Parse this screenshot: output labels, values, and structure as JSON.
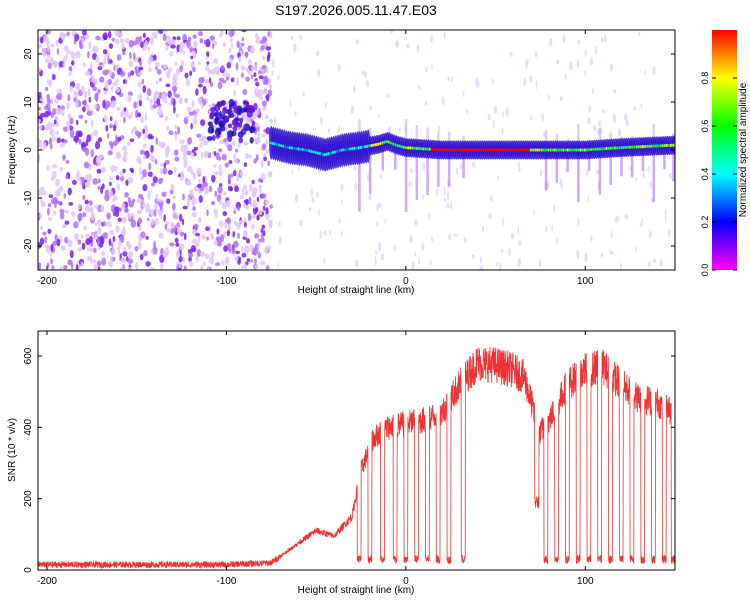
{
  "title": "S197.2026.005.11.47.E03",
  "colors": {
    "snr_line": "#ee3333",
    "spectrogram_colormap": [
      "#ff00ff",
      "#8000ff",
      "#0000ff",
      "#0080ff",
      "#00ffff",
      "#00ff80",
      "#00ff00",
      "#80ff00",
      "#ffff00",
      "#ff8000",
      "#ff0000"
    ]
  },
  "chart_data": [
    {
      "type": "heatmap",
      "name": "spectrogram",
      "xlabel": "Height of straight line (km)",
      "ylabel": "Frequency (Hz)",
      "xlim": [
        -205,
        150
      ],
      "ylim": [
        -25,
        25
      ],
      "xticks": [
        -200,
        -100,
        0,
        100
      ],
      "xtick_labels": [
        "-200",
        "-100",
        "0",
        "100"
      ],
      "yticks": [
        -20,
        -10,
        0,
        10,
        20
      ],
      "ytick_labels": [
        "-20",
        "-10",
        "0",
        "10",
        "20"
      ],
      "colorbar": {
        "label": "Normalized spectral amplitude",
        "range": [
          0,
          1
        ],
        "ticks": [
          0.0,
          0.2,
          0.4,
          0.6,
          0.8
        ],
        "tick_labels": [
          "0.0",
          "0.2",
          "0.4",
          "0.6",
          "0.8"
        ]
      },
      "noise_region_km": [
        -205,
        -75
      ],
      "transition_region_km": [
        -75,
        -20
      ],
      "signal_track": [
        {
          "x": -75,
          "f": 1.5
        },
        {
          "x": -65,
          "f": 0.5
        },
        {
          "x": -55,
          "f": 0
        },
        {
          "x": -45,
          "f": -1
        },
        {
          "x": -35,
          "f": 0
        },
        {
          "x": -25,
          "f": 0.5
        },
        {
          "x": -15,
          "f": 1.2
        },
        {
          "x": -10,
          "f": 1.8
        },
        {
          "x": -5,
          "f": 1
        },
        {
          "x": 0,
          "f": 0.5
        },
        {
          "x": 20,
          "f": 0
        },
        {
          "x": 40,
          "f": 0
        },
        {
          "x": 70,
          "f": 0
        },
        {
          "x": 100,
          "f": 0
        },
        {
          "x": 120,
          "f": 0.5
        },
        {
          "x": 150,
          "f": 1
        }
      ],
      "peak_segment_km": [
        15,
        70
      ]
    },
    {
      "type": "line",
      "name": "snr",
      "xlabel": "Height of straight line (km)",
      "ylabel": "SNR (10 * v/v)",
      "xlim": [
        -205,
        150
      ],
      "ylim": [
        0,
        670
      ],
      "xticks": [
        -200,
        -100,
        0,
        100
      ],
      "xtick_labels": [
        "-200",
        "-100",
        "0",
        "100"
      ],
      "yticks": [
        0,
        200,
        400,
        600
      ],
      "ytick_labels": [
        "0",
        "200",
        "400",
        "600"
      ],
      "series": [
        {
          "name": "SNR",
          "envelope": [
            {
              "x": -205,
              "v": 15
            },
            {
              "x": -100,
              "v": 15
            },
            {
              "x": -75,
              "v": 20
            },
            {
              "x": -60,
              "v": 75
            },
            {
              "x": -50,
              "v": 110
            },
            {
              "x": -40,
              "v": 95
            },
            {
              "x": -30,
              "v": 150
            },
            {
              "x": -25,
              "v": 280
            },
            {
              "x": -18,
              "v": 370
            },
            {
              "x": -10,
              "v": 400
            },
            {
              "x": 0,
              "v": 410
            },
            {
              "x": 10,
              "v": 420
            },
            {
              "x": 20,
              "v": 440
            },
            {
              "x": 30,
              "v": 520
            },
            {
              "x": 40,
              "v": 580
            },
            {
              "x": 50,
              "v": 575
            },
            {
              "x": 60,
              "v": 560
            },
            {
              "x": 66,
              "v": 540
            },
            {
              "x": 70,
              "v": 470
            },
            {
              "x": 74,
              "v": 380
            },
            {
              "x": 80,
              "v": 420
            },
            {
              "x": 90,
              "v": 520
            },
            {
              "x": 100,
              "v": 560
            },
            {
              "x": 110,
              "v": 570
            },
            {
              "x": 120,
              "v": 520
            },
            {
              "x": 130,
              "v": 480
            },
            {
              "x": 140,
              "v": 470
            },
            {
              "x": 150,
              "v": 440
            }
          ],
          "dropouts_km": [
            -26,
            -20,
            -13,
            -6,
            0,
            6,
            12,
            18,
            24,
            32,
            78,
            84,
            90,
            96,
            102,
            108,
            114,
            120,
            126,
            132,
            138,
            144,
            149
          ],
          "dropout_level": 30,
          "dip": {
            "x": 73,
            "v": 190
          }
        }
      ]
    }
  ]
}
